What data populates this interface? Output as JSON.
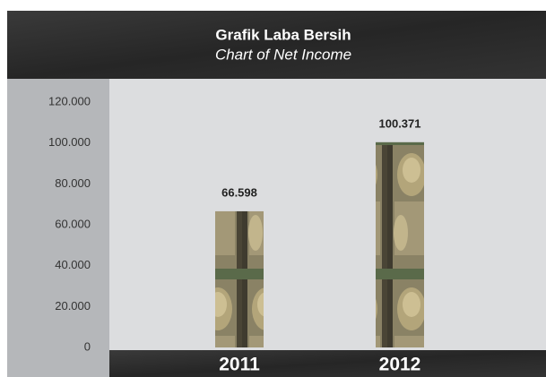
{
  "chart_data": {
    "type": "bar",
    "title": "Grafik Laba Bersih",
    "subtitle": "Chart of Net Income",
    "categories": [
      "2011",
      "2012"
    ],
    "values": [
      66598,
      100371
    ],
    "value_labels": [
      "66.598",
      "100.371"
    ],
    "ylim": [
      0,
      120000
    ],
    "yticks": [
      0,
      {
        "value": 20000,
        "label": "20.000"
      },
      {
        "value": 40000,
        "label": "40.000"
      },
      {
        "value": 60000,
        "label": "60.000"
      },
      {
        "value": 80000,
        "label": "80.000"
      },
      {
        "value": 100000,
        "label": "100.000"
      },
      {
        "value": 120000,
        "label": "120.000"
      }
    ],
    "grid": false
  }
}
